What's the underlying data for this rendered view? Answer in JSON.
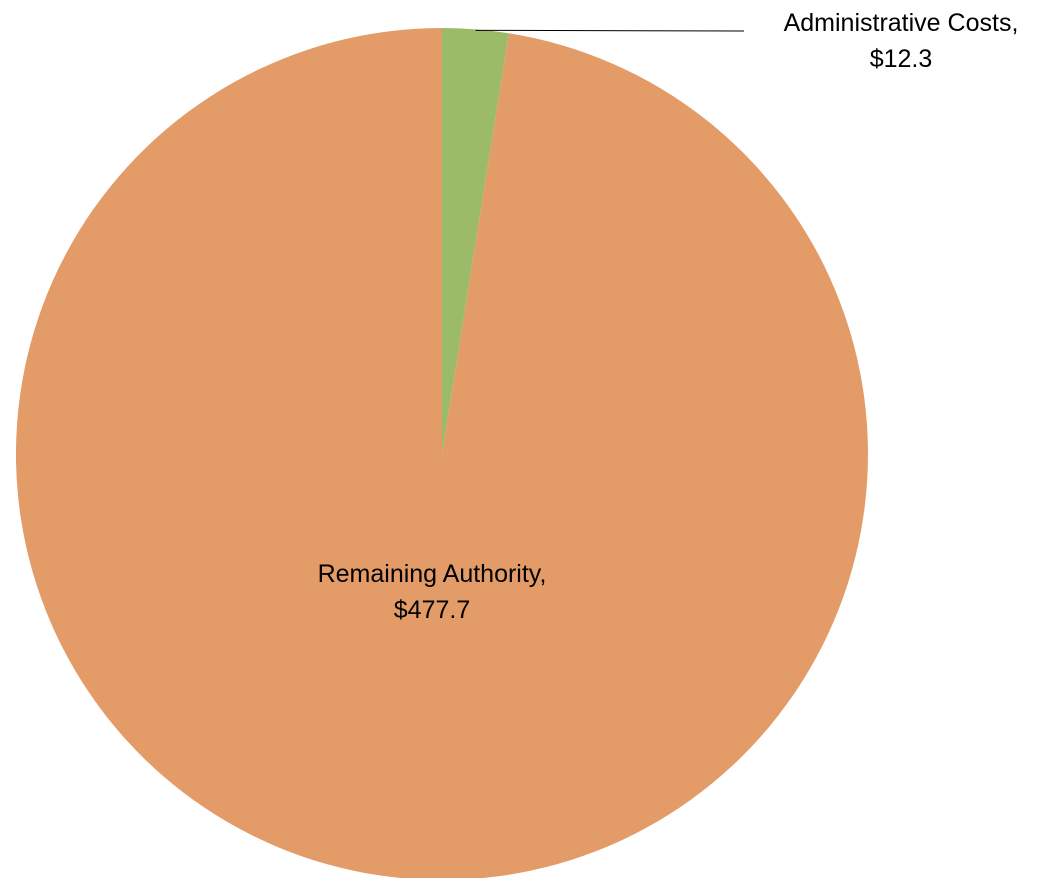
{
  "chart_data": {
    "type": "pie",
    "title": "",
    "slices": [
      {
        "label": "Administrative Costs",
        "display_value": "$12.3",
        "value": 12.3,
        "color": "#9bbb69",
        "label_position": "outside-top-right"
      },
      {
        "label": "Remaining Authority",
        "display_value": "$477.7",
        "value": 477.7,
        "color": "#e39b68",
        "label_position": "inside"
      }
    ],
    "legend": "none",
    "start_angle": "12 o'clock",
    "direction": "clockwise"
  }
}
